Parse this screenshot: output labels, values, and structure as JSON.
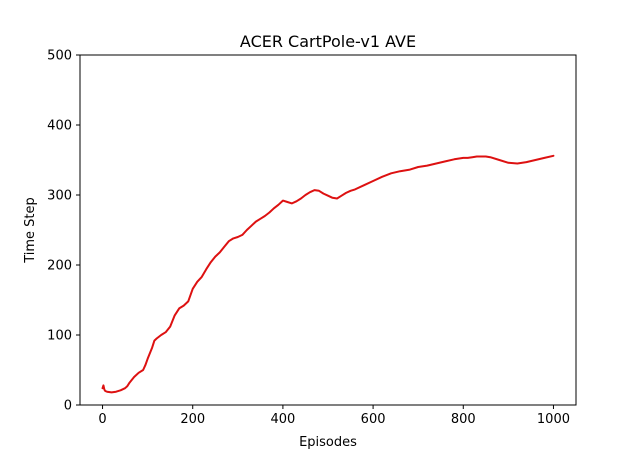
{
  "chart_data": {
    "type": "line",
    "title": "ACER CartPole-v1 AVE",
    "xlabel": "Episodes",
    "ylabel": "Time Step",
    "xlim": [
      -50,
      1050
    ],
    "ylim": [
      0,
      500
    ],
    "xticks": [
      0,
      200,
      400,
      600,
      800,
      1000
    ],
    "yticks": [
      0,
      100,
      200,
      300,
      400,
      500
    ],
    "grid": false,
    "series": [
      {
        "color": "#dd1111",
        "x": [
          0,
          2,
          4,
          6,
          10,
          20,
          30,
          40,
          50,
          55,
          60,
          70,
          80,
          90,
          95,
          100,
          110,
          115,
          120,
          130,
          140,
          150,
          160,
          170,
          180,
          190,
          200,
          210,
          220,
          230,
          240,
          250,
          260,
          270,
          280,
          290,
          300,
          310,
          320,
          330,
          340,
          350,
          360,
          370,
          380,
          390,
          400,
          410,
          420,
          430,
          440,
          450,
          460,
          470,
          480,
          490,
          500,
          510,
          520,
          530,
          540,
          550,
          560,
          580,
          600,
          620,
          640,
          660,
          680,
          700,
          720,
          740,
          760,
          780,
          800,
          810,
          820,
          830,
          840,
          850,
          860,
          880,
          900,
          920,
          940,
          960,
          980,
          1000
        ],
        "values": [
          24,
          28,
          22,
          20,
          19,
          18,
          19,
          21,
          24,
          27,
          32,
          40,
          46,
          50,
          57,
          66,
          82,
          92,
          95,
          100,
          104,
          112,
          128,
          138,
          142,
          148,
          166,
          176,
          183,
          194,
          204,
          212,
          218,
          226,
          234,
          238,
          240,
          243,
          250,
          256,
          262,
          266,
          270,
          275,
          281,
          286,
          292,
          290,
          288,
          291,
          295,
          300,
          304,
          307,
          306,
          302,
          299,
          296,
          295,
          299,
          303,
          306,
          308,
          314,
          320,
          326,
          331,
          334,
          336,
          340,
          342,
          345,
          348,
          351,
          353,
          353,
          354,
          355,
          355,
          355,
          354,
          350,
          346,
          345,
          347,
          350,
          353,
          356
        ]
      }
    ]
  }
}
